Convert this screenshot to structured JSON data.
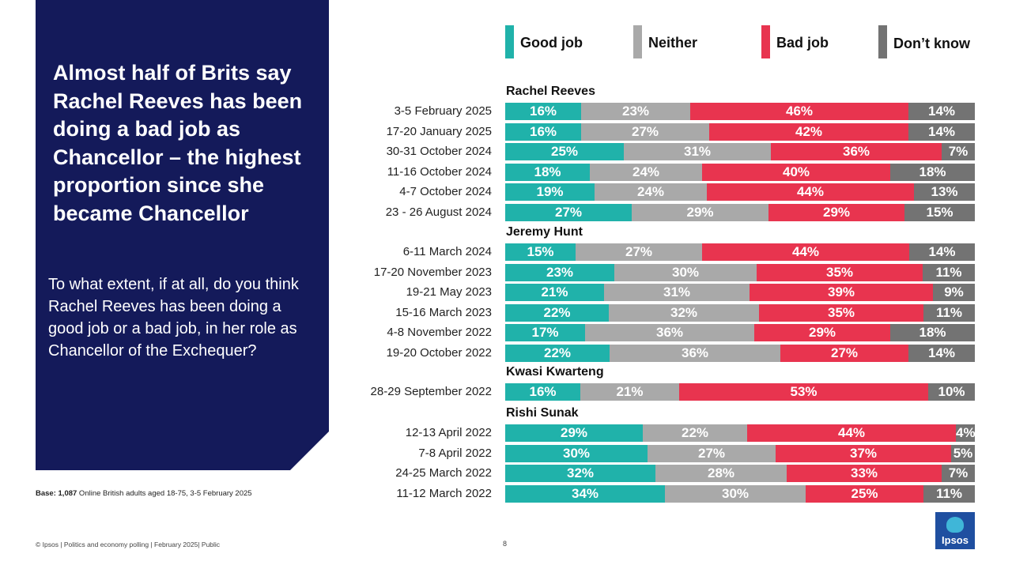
{
  "headline": "Almost half of Brits say Rachel Reeves has been doing a bad job as Chancellor – the highest proportion since she became Chancellor",
  "question": "To what extent, if at all, do you think Rachel Reeves has been doing a good job or a bad job, in her role as Chancellor of the Exchequer?",
  "base": {
    "label": "Base:",
    "count": "1,087",
    "text": " Online British adults aged 18-75, 3-5 February 2025"
  },
  "footer": "© Ipsos | Politics and economy polling | February 2025| Public",
  "page_number": "8",
  "logo_text": "Ipsos",
  "colors": {
    "good": "#20b2aa",
    "neither": "#a9a9a9",
    "bad": "#e8344f",
    "dont_know": "#737373",
    "panel": "#141a5a"
  },
  "chart_data": {
    "type": "bar",
    "stacked": true,
    "orientation": "horizontal",
    "series_names": [
      "Good job",
      "Neither",
      "Bad job",
      "Don’t know"
    ],
    "groups": [
      {
        "name": "Rachel Reeves",
        "rows": [
          {
            "label": "3-5 February 2025",
            "values": [
              16,
              23,
              46,
              14
            ]
          },
          {
            "label": "17-20 January 2025",
            "values": [
              16,
              27,
              42,
              14
            ]
          },
          {
            "label": "30-31 October 2024",
            "values": [
              25,
              31,
              36,
              7
            ]
          },
          {
            "label": "11-16 October 2024",
            "values": [
              18,
              24,
              40,
              18
            ]
          },
          {
            "label": "4-7 October 2024",
            "values": [
              19,
              24,
              44,
              13
            ]
          },
          {
            "label": "23 - 26 August 2024",
            "values": [
              27,
              29,
              29,
              15
            ]
          }
        ]
      },
      {
        "name": "Jeremy Hunt",
        "rows": [
          {
            "label": "6-11 March 2024",
            "values": [
              15,
              27,
              44,
              14
            ]
          },
          {
            "label": "17-20 November 2023",
            "values": [
              23,
              30,
              35,
              11
            ]
          },
          {
            "label": "19-21 May 2023",
            "values": [
              21,
              31,
              39,
              9
            ]
          },
          {
            "label": "15-16 March 2023",
            "values": [
              22,
              32,
              35,
              11
            ]
          },
          {
            "label": "4-8 November 2022",
            "values": [
              17,
              36,
              29,
              18
            ]
          },
          {
            "label": "19-20 October 2022",
            "values": [
              22,
              36,
              27,
              14
            ]
          }
        ]
      },
      {
        "name": "Kwasi Kwarteng",
        "rows": [
          {
            "label": "28-29 September 2022",
            "values": [
              16,
              21,
              53,
              10
            ]
          }
        ]
      },
      {
        "name": "Rishi Sunak",
        "rows": [
          {
            "label": "12-13 April 2022",
            "values": [
              29,
              22,
              44,
              4
            ]
          },
          {
            "label": "7-8 April 2022",
            "values": [
              30,
              27,
              37,
              5
            ]
          },
          {
            "label": "24-25 March 2022",
            "values": [
              32,
              28,
              33,
              7
            ]
          },
          {
            "label": "11-12 March 2022",
            "values": [
              34,
              30,
              25,
              11
            ]
          }
        ]
      }
    ]
  }
}
